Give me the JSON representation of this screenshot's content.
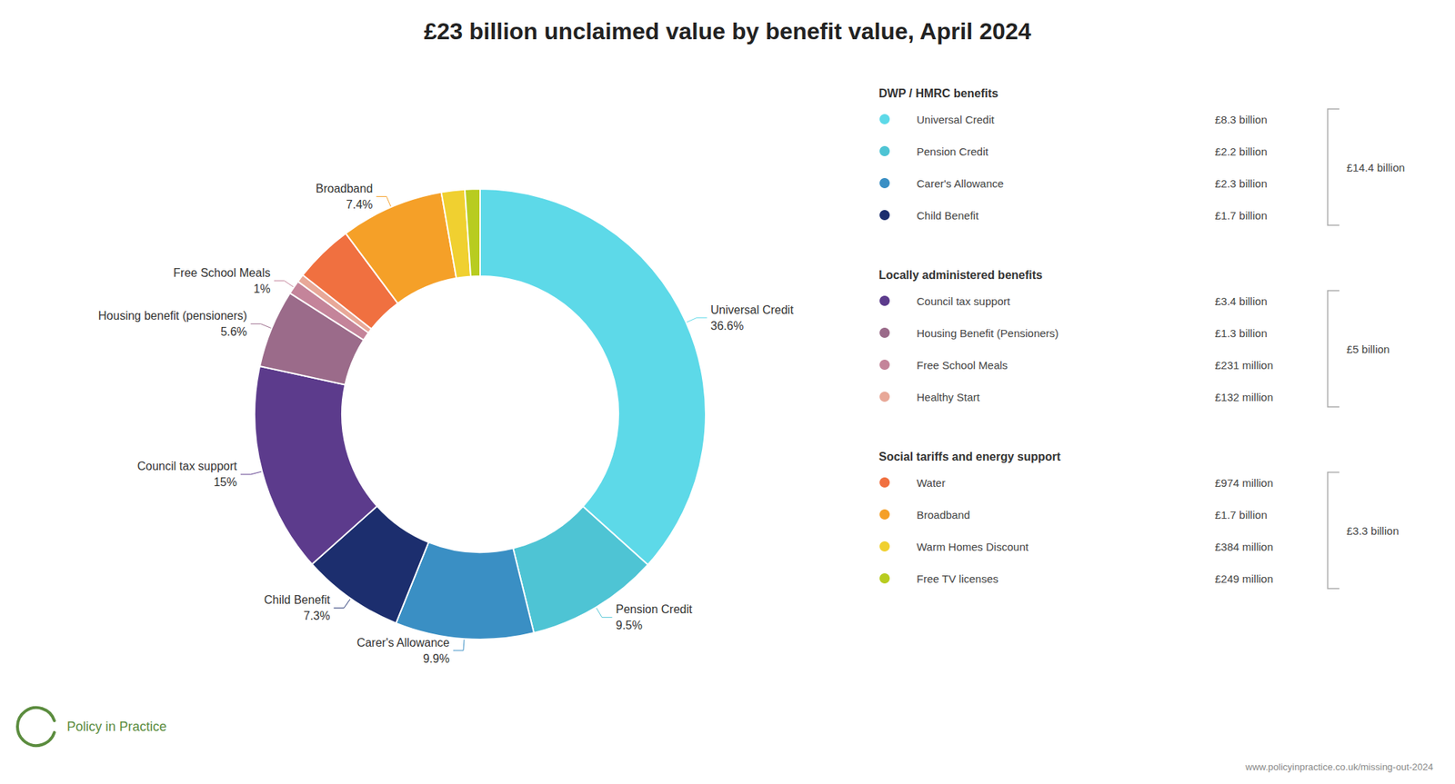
{
  "chart_data": {
    "type": "pie",
    "title": "£23 billion unclaimed value by benefit value, April 2024",
    "categories": [
      "Universal Credit",
      "Pension Credit",
      "Carer's Allowance",
      "Child Benefit",
      "Council tax support",
      "Housing benefit (pensioners)",
      "Free School Meals",
      "Healthy Start",
      "Water",
      "Broadband",
      "Warm Homes Discount",
      "Free TV licenses"
    ],
    "values": [
      36.6,
      9.5,
      9.9,
      7.3,
      15.0,
      5.6,
      1.0,
      0.57,
      4.23,
      7.4,
      1.67,
      1.08
    ],
    "colors": [
      "#5DD9E8",
      "#4EC4D4",
      "#3A8FC4",
      "#1C2E6E",
      "#5C3B8C",
      "#9B6B8A",
      "#C4849A",
      "#E8A898",
      "#F07040",
      "#F5A028",
      "#F0D030",
      "#B8CC20"
    ],
    "data_labels": true,
    "value_labels": [
      "36.6%",
      "9.5%",
      "9.9%",
      "7.3%",
      "15%",
      "5.6%",
      "1%",
      null,
      null,
      "7.4%",
      null,
      null
    ],
    "legend_groups": [
      {
        "header": "DWP / HMRC benefits",
        "items": [
          {
            "label": "Universal Credit",
            "color": "#5DD9E8",
            "amount": "£8.3 billion"
          },
          {
            "label": "Pension Credit",
            "color": "#4EC4D4",
            "amount": "£2.2 billion"
          },
          {
            "label": "Carer's Allowance",
            "color": "#3A8FC4",
            "amount": "£2.3 billion"
          },
          {
            "label": "Child Benefit",
            "color": "#1C2E6E",
            "amount": "£1.7 billion"
          }
        ],
        "total": "£14.4 billion"
      },
      {
        "header": "Locally administered benefits",
        "items": [
          {
            "label": "Council tax support",
            "color": "#5C3B8C",
            "amount": "£3.4 billion"
          },
          {
            "label": "Housing Benefit (Pensioners)",
            "color": "#9B6B8A",
            "amount": "£1.3 billion"
          },
          {
            "label": "Free School Meals",
            "color": "#C4849A",
            "amount": "£231 million"
          },
          {
            "label": "Healthy Start",
            "color": "#E8A898",
            "amount": "£132 million"
          }
        ],
        "total": "£5 billion"
      },
      {
        "header": "Social tariffs and energy support",
        "items": [
          {
            "label": "Water",
            "color": "#F07040",
            "amount": "£974 million"
          },
          {
            "label": "Broadband",
            "color": "#F5A028",
            "amount": "£1.7 billion"
          },
          {
            "label": "Warm Homes Discount",
            "color": "#F0D030",
            "amount": "£384 million"
          },
          {
            "label": "Free TV licenses",
            "color": "#B8CC20",
            "amount": "£249 million"
          }
        ],
        "total": "£3.3 billion"
      }
    ],
    "logo": {
      "text": "Policy in Practice",
      "color": "#5B8C3E"
    },
    "footer": "www.policyinpractice.co.uk/missing-out-2024"
  }
}
